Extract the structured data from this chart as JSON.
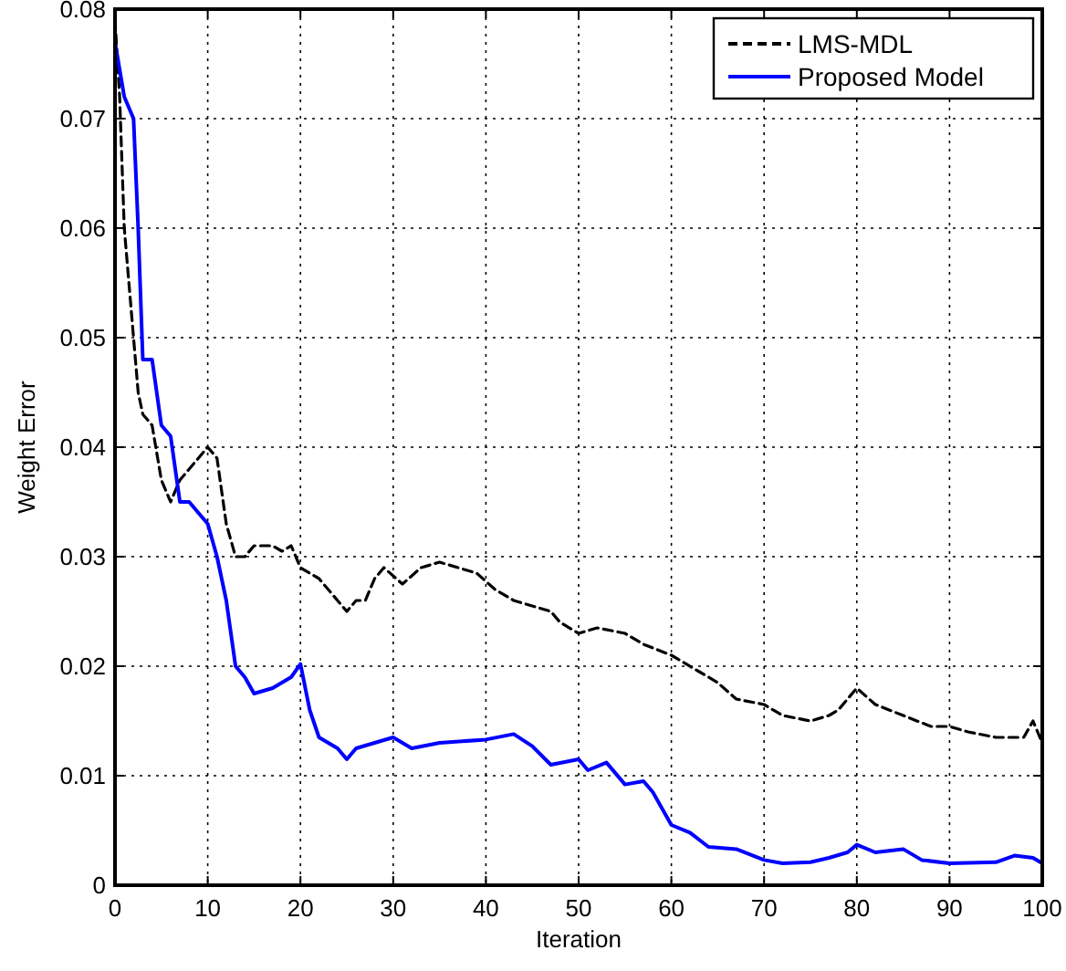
{
  "chart_data": {
    "type": "line",
    "xlabel": "Iteration",
    "ylabel": "Weight Error",
    "xlim": [
      0,
      100
    ],
    "xticks": [
      0,
      10,
      20,
      30,
      40,
      50,
      60,
      70,
      80,
      90,
      100
    ],
    "ylim": [
      0,
      0.08
    ],
    "yticks": [
      0,
      0.01,
      0.02,
      0.03,
      0.04,
      0.05,
      0.06,
      0.07,
      0.08
    ],
    "grid": true,
    "legend": "top right",
    "series": [
      {
        "name": "LMS-MDL",
        "color": "#000000",
        "line_style": "dashed",
        "x": [
          0,
          0.5,
          1,
          1.5,
          2,
          2.5,
          3,
          4,
          5,
          6,
          7,
          8,
          9,
          10,
          11,
          12,
          13,
          14,
          15,
          17,
          18,
          19,
          20,
          22,
          24,
          25,
          26,
          27,
          28,
          29,
          31,
          33,
          35,
          37,
          39,
          41,
          43,
          45,
          47,
          48,
          50,
          52,
          55,
          57,
          60,
          63,
          65,
          67,
          70,
          72,
          75,
          77,
          78,
          80,
          82,
          85,
          88,
          90,
          92,
          95,
          98,
          99,
          100
        ],
        "values": [
          0.079,
          0.072,
          0.06,
          0.055,
          0.05,
          0.045,
          0.043,
          0.042,
          0.037,
          0.035,
          0.037,
          0.038,
          0.039,
          0.04,
          0.039,
          0.033,
          0.03,
          0.03,
          0.031,
          0.031,
          0.0305,
          0.031,
          0.029,
          0.028,
          0.026,
          0.025,
          0.026,
          0.026,
          0.028,
          0.029,
          0.0275,
          0.029,
          0.0295,
          0.029,
          0.0285,
          0.027,
          0.026,
          0.0255,
          0.025,
          0.024,
          0.023,
          0.0235,
          0.023,
          0.022,
          0.021,
          0.0195,
          0.0185,
          0.017,
          0.0165,
          0.0155,
          0.015,
          0.0155,
          0.016,
          0.018,
          0.0165,
          0.0155,
          0.0145,
          0.0145,
          0.014,
          0.0135,
          0.0135,
          0.015,
          0.013
        ]
      },
      {
        "name": "Proposed Model",
        "color": "#0000ff",
        "line_style": "solid",
        "x": [
          0,
          1,
          2,
          2.5,
          3,
          4,
          5,
          6,
          7,
          8,
          9,
          10,
          11,
          12,
          13,
          14,
          15,
          17,
          19,
          20,
          21,
          22,
          24,
          25,
          26,
          28,
          30,
          32,
          35,
          40,
          43,
          45,
          47,
          50,
          51,
          53,
          55,
          57,
          58,
          60,
          62,
          64,
          67,
          70,
          72,
          75,
          77,
          79,
          80,
          82,
          85,
          87,
          90,
          95,
          97,
          99,
          100
        ],
        "values": [
          0.077,
          0.072,
          0.07,
          0.06,
          0.048,
          0.048,
          0.042,
          0.041,
          0.035,
          0.035,
          0.034,
          0.033,
          0.03,
          0.026,
          0.02,
          0.019,
          0.0175,
          0.018,
          0.019,
          0.0202,
          0.016,
          0.0135,
          0.0125,
          0.0115,
          0.0125,
          0.013,
          0.0135,
          0.0125,
          0.013,
          0.0133,
          0.0138,
          0.0127,
          0.011,
          0.0115,
          0.0105,
          0.0112,
          0.0092,
          0.0095,
          0.0085,
          0.0055,
          0.0048,
          0.0035,
          0.0033,
          0.0023,
          0.002,
          0.0021,
          0.0025,
          0.003,
          0.0037,
          0.003,
          0.0033,
          0.0023,
          0.002,
          0.0021,
          0.0027,
          0.0025,
          0.002
        ]
      }
    ]
  }
}
